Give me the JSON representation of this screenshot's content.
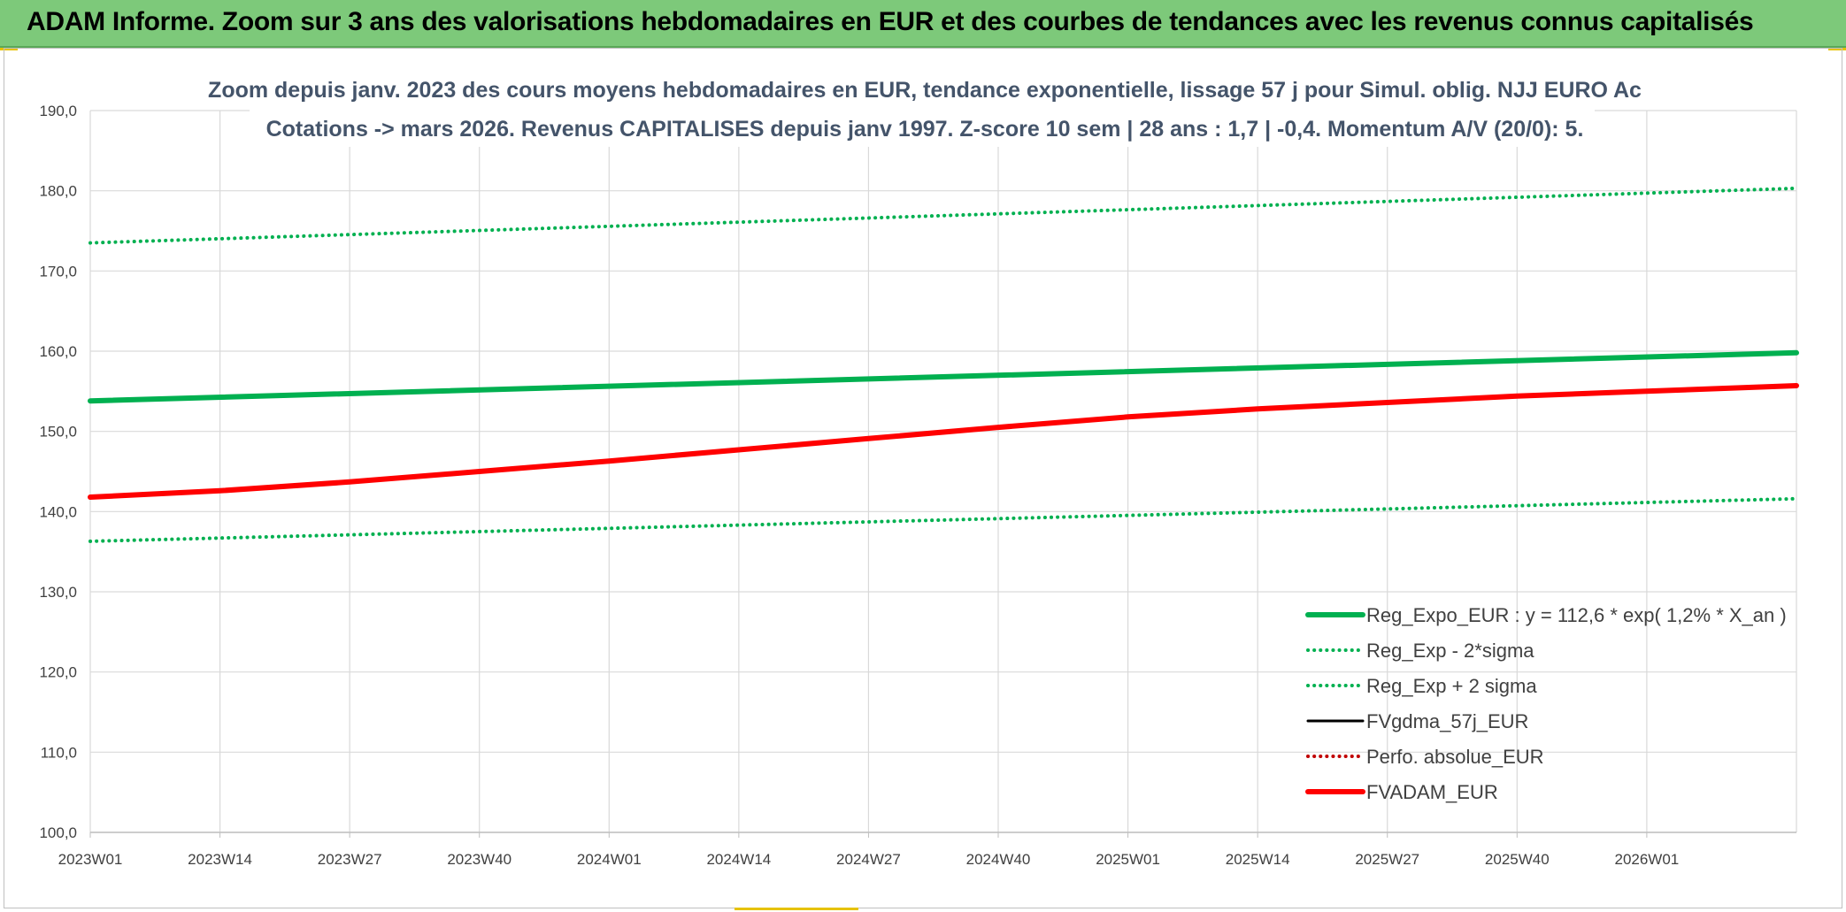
{
  "banner": {
    "title": "ADAM Informe. Zoom sur 3 ans des valorisations hebdomadaires en EUR et des courbes de tendances avec les revenus connus capitalisés"
  },
  "chart_data": {
    "type": "line",
    "title": "Zoom depuis janv. 2023 des cours moyens hebdomadaires en EUR, tendance exponentielle, lissage 57 j pour Simul. oblig. NJJ EURO Ac",
    "subtitle": "Cotations -> mars 2026. Revenus CAPITALISES depuis janv 1997. Z-score 10 sem | 28 ans : 1,7 | -0,4. Momentum A/V (20/0): 5.",
    "xlabel": "",
    "ylabel": "",
    "x_ticks": [
      "2023W01",
      "2023W14",
      "2023W27",
      "2023W40",
      "2024W01",
      "2024W14",
      "2024W27",
      "2024W40",
      "2025W01",
      "2025W14",
      "2025W27",
      "2025W40",
      "2026W01"
    ],
    "x_range": [
      0,
      171
    ],
    "y_ticks": [
      "100,0",
      "110,0",
      "120,0",
      "130,0",
      "140,0",
      "150,0",
      "160,0",
      "170,0",
      "180,0",
      "190,0"
    ],
    "ylim": [
      100,
      190
    ],
    "grid": true,
    "legend_position": "bottom-right",
    "series": [
      {
        "name": "Reg_Expo_EUR : y = 112,6 * exp( 1,2% *  X_an )",
        "color": "#00b050",
        "style": "solid-thick",
        "points": [
          [
            0,
            153.8
          ],
          [
            171,
            159.8
          ]
        ]
      },
      {
        "name": "Reg_Exp - 2*sigma",
        "color": "#00b050",
        "style": "dotted",
        "points": [
          [
            0,
            136.3
          ],
          [
            171,
            141.6
          ]
        ]
      },
      {
        "name": "Reg_Exp + 2 sigma",
        "color": "#00b050",
        "style": "dotted",
        "points": [
          [
            0,
            173.5
          ],
          [
            171,
            180.3
          ]
        ]
      },
      {
        "name": "FVgdma_57j_EUR",
        "color": "#000000",
        "style": "solid",
        "points": []
      },
      {
        "name": "Perfo. absolue_EUR",
        "color": "#c00000",
        "style": "dotted",
        "points": []
      },
      {
        "name": "FVADAM_EUR",
        "color": "#ff0000",
        "style": "solid-thick",
        "points": [
          [
            0,
            141.8
          ],
          [
            13,
            142.6
          ],
          [
            26,
            143.7
          ],
          [
            39,
            145.0
          ],
          [
            52,
            146.3
          ],
          [
            65,
            147.7
          ],
          [
            78,
            149.1
          ],
          [
            91,
            150.5
          ],
          [
            104,
            151.8
          ],
          [
            117,
            152.8
          ],
          [
            130,
            153.6
          ],
          [
            143,
            154.4
          ],
          [
            156,
            155.0
          ],
          [
            171,
            155.7
          ]
        ]
      }
    ]
  }
}
